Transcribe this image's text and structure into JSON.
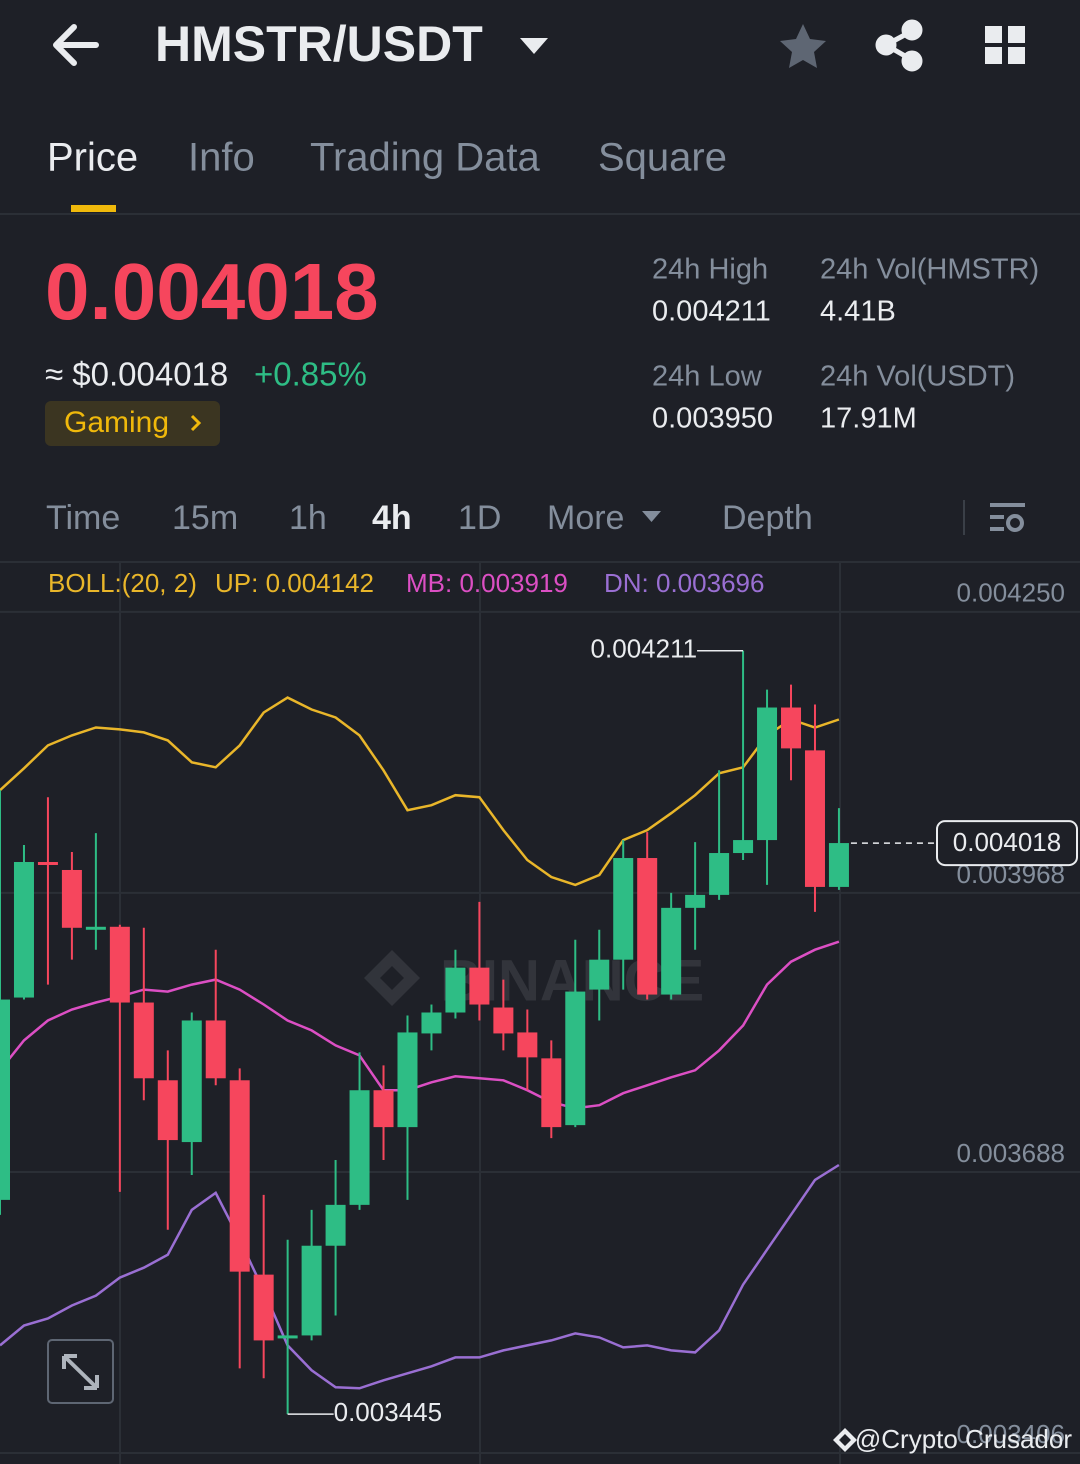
{
  "header": {
    "title": "HMSTR/USDT"
  },
  "tabs": [
    "Price",
    "Info",
    "Trading Data",
    "Square"
  ],
  "price": {
    "last": "0.004018",
    "usd": "≈ $0.004018",
    "change": "+0.85%",
    "tag": "Gaming"
  },
  "stats": [
    {
      "label": "24h High",
      "value": "0.004211"
    },
    {
      "label": "24h Vol(HMSTR)",
      "value": "4.41B"
    },
    {
      "label": "24h Low",
      "value": "0.003950"
    },
    {
      "label": "24h Vol(USDT)",
      "value": "17.91M"
    }
  ],
  "intervals": [
    "Time",
    "15m",
    "1h",
    "4h",
    "1D",
    "More",
    "Depth"
  ],
  "credit": "@Crypto Crusador",
  "chart_data": {
    "type": "candlestick",
    "indicator": "BOLL:(20, 2)",
    "watermark": "BINANCE",
    "ylim": [
      0.003395,
      0.004299
    ],
    "yticks": [
      {
        "value": 0.00425,
        "label": "0.004250"
      },
      0.003968,
      0.003688,
      0.003406
    ],
    "grid": true,
    "up_color": "#2ebd85",
    "down_color": "#f6465d",
    "candles": {
      "open": [
        0.00366,
        0.003863,
        0.003999,
        0.003991,
        0.003931,
        0.003934,
        0.003858,
        0.00378,
        0.003718,
        0.00384,
        0.00378,
        0.003585,
        0.003521,
        0.003524,
        0.003614,
        0.003655,
        0.00377,
        0.003733,
        0.003827,
        0.003848,
        0.003893,
        0.003853,
        0.003828,
        0.003802,
        0.003735,
        0.003871,
        0.003901,
        0.004003,
        0.003866,
        0.003953,
        0.003966,
        0.004008,
        0.004021,
        0.004154,
        0.004111,
        0.003974
      ],
      "high": [
        0.004071,
        0.004016,
        0.004064,
        0.004009,
        0.004028,
        0.003936,
        0.003933,
        0.00381,
        0.003848,
        0.003911,
        0.003792,
        0.003665,
        0.00362,
        0.00365,
        0.0037,
        0.003808,
        0.003795,
        0.003845,
        0.003856,
        0.003911,
        0.003959,
        0.003881,
        0.003851,
        0.00382,
        0.003921,
        0.003931,
        0.004021,
        0.004029,
        0.003968,
        0.004019,
        0.004091,
        0.004211,
        0.004172,
        0.004177,
        0.004157,
        0.004053
      ],
      "low": [
        0.003645,
        0.003861,
        0.003876,
        0.003901,
        0.003911,
        0.003668,
        0.00376,
        0.00363,
        0.003685,
        0.003775,
        0.003491,
        0.003481,
        0.003445,
        0.003519,
        0.003544,
        0.00365,
        0.0037,
        0.00366,
        0.00381,
        0.003842,
        0.00384,
        0.00381,
        0.00377,
        0.003722,
        0.003733,
        0.00384,
        0.003871,
        0.003861,
        0.003861,
        0.003911,
        0.003961,
        0.004001,
        0.003976,
        0.004081,
        0.003949,
        0.003971
      ],
      "close": [
        0.003861,
        0.003999,
        0.003996,
        0.003933,
        0.003934,
        0.003858,
        0.003782,
        0.00372,
        0.00384,
        0.003782,
        0.003588,
        0.003519,
        0.003524,
        0.003614,
        0.003655,
        0.00377,
        0.003733,
        0.003828,
        0.003848,
        0.003893,
        0.003856,
        0.003827,
        0.003803,
        0.003733,
        0.003869,
        0.003901,
        0.004003,
        0.003866,
        0.003953,
        0.003966,
        0.004008,
        0.004021,
        0.004154,
        0.004113,
        0.003974,
        0.004018
      ]
    },
    "series": [
      {
        "name": "UP: 0.004142",
        "color": "#e9b62a",
        "values": [
          0.004071,
          0.004093,
          0.004116,
          0.004126,
          0.004134,
          0.004132,
          0.004129,
          0.004121,
          0.004099,
          0.004094,
          0.004116,
          0.004149,
          0.004164,
          0.004152,
          0.004144,
          0.004126,
          0.004091,
          0.004051,
          0.004056,
          0.004066,
          0.004064,
          0.004031,
          0.004001,
          0.003984,
          0.003976,
          0.003986,
          0.004021,
          0.004031,
          0.004048,
          0.004066,
          0.004088,
          0.004094,
          0.004126,
          0.004142,
          0.004134,
          0.004142
        ]
      },
      {
        "name": "MB: 0.003919",
        "color": "#dc4fc4",
        "values": [
          0.00379,
          0.00382,
          0.00384,
          0.003851,
          0.003858,
          0.003864,
          0.003871,
          0.003869,
          0.003876,
          0.003881,
          0.003871,
          0.003856,
          0.00384,
          0.00383,
          0.003815,
          0.003805,
          0.00377,
          0.00377,
          0.003778,
          0.003784,
          0.003782,
          0.00378,
          0.00377,
          0.003758,
          0.003752,
          0.003755,
          0.003767,
          0.003775,
          0.003783,
          0.00379,
          0.00381,
          0.003835,
          0.003876,
          0.003899,
          0.003911,
          0.003919
        ]
      },
      {
        "name": "DN: 0.003696",
        "color": "#9a6fd3",
        "values": [
          0.003514,
          0.003534,
          0.003541,
          0.003554,
          0.003564,
          0.003582,
          0.003592,
          0.003605,
          0.00365,
          0.003667,
          0.00362,
          0.003569,
          0.003514,
          0.003489,
          0.003472,
          0.003471,
          0.003479,
          0.003486,
          0.003493,
          0.003502,
          0.003502,
          0.003509,
          0.003514,
          0.003519,
          0.003526,
          0.003522,
          0.003512,
          0.003514,
          0.003509,
          0.003507,
          0.003529,
          0.003575,
          0.00361,
          0.003645,
          0.00368,
          0.003695
        ]
      }
    ],
    "annotations": {
      "high_label": "0.004211",
      "low_label": "0.003445",
      "last_label": "0.004018"
    }
  }
}
